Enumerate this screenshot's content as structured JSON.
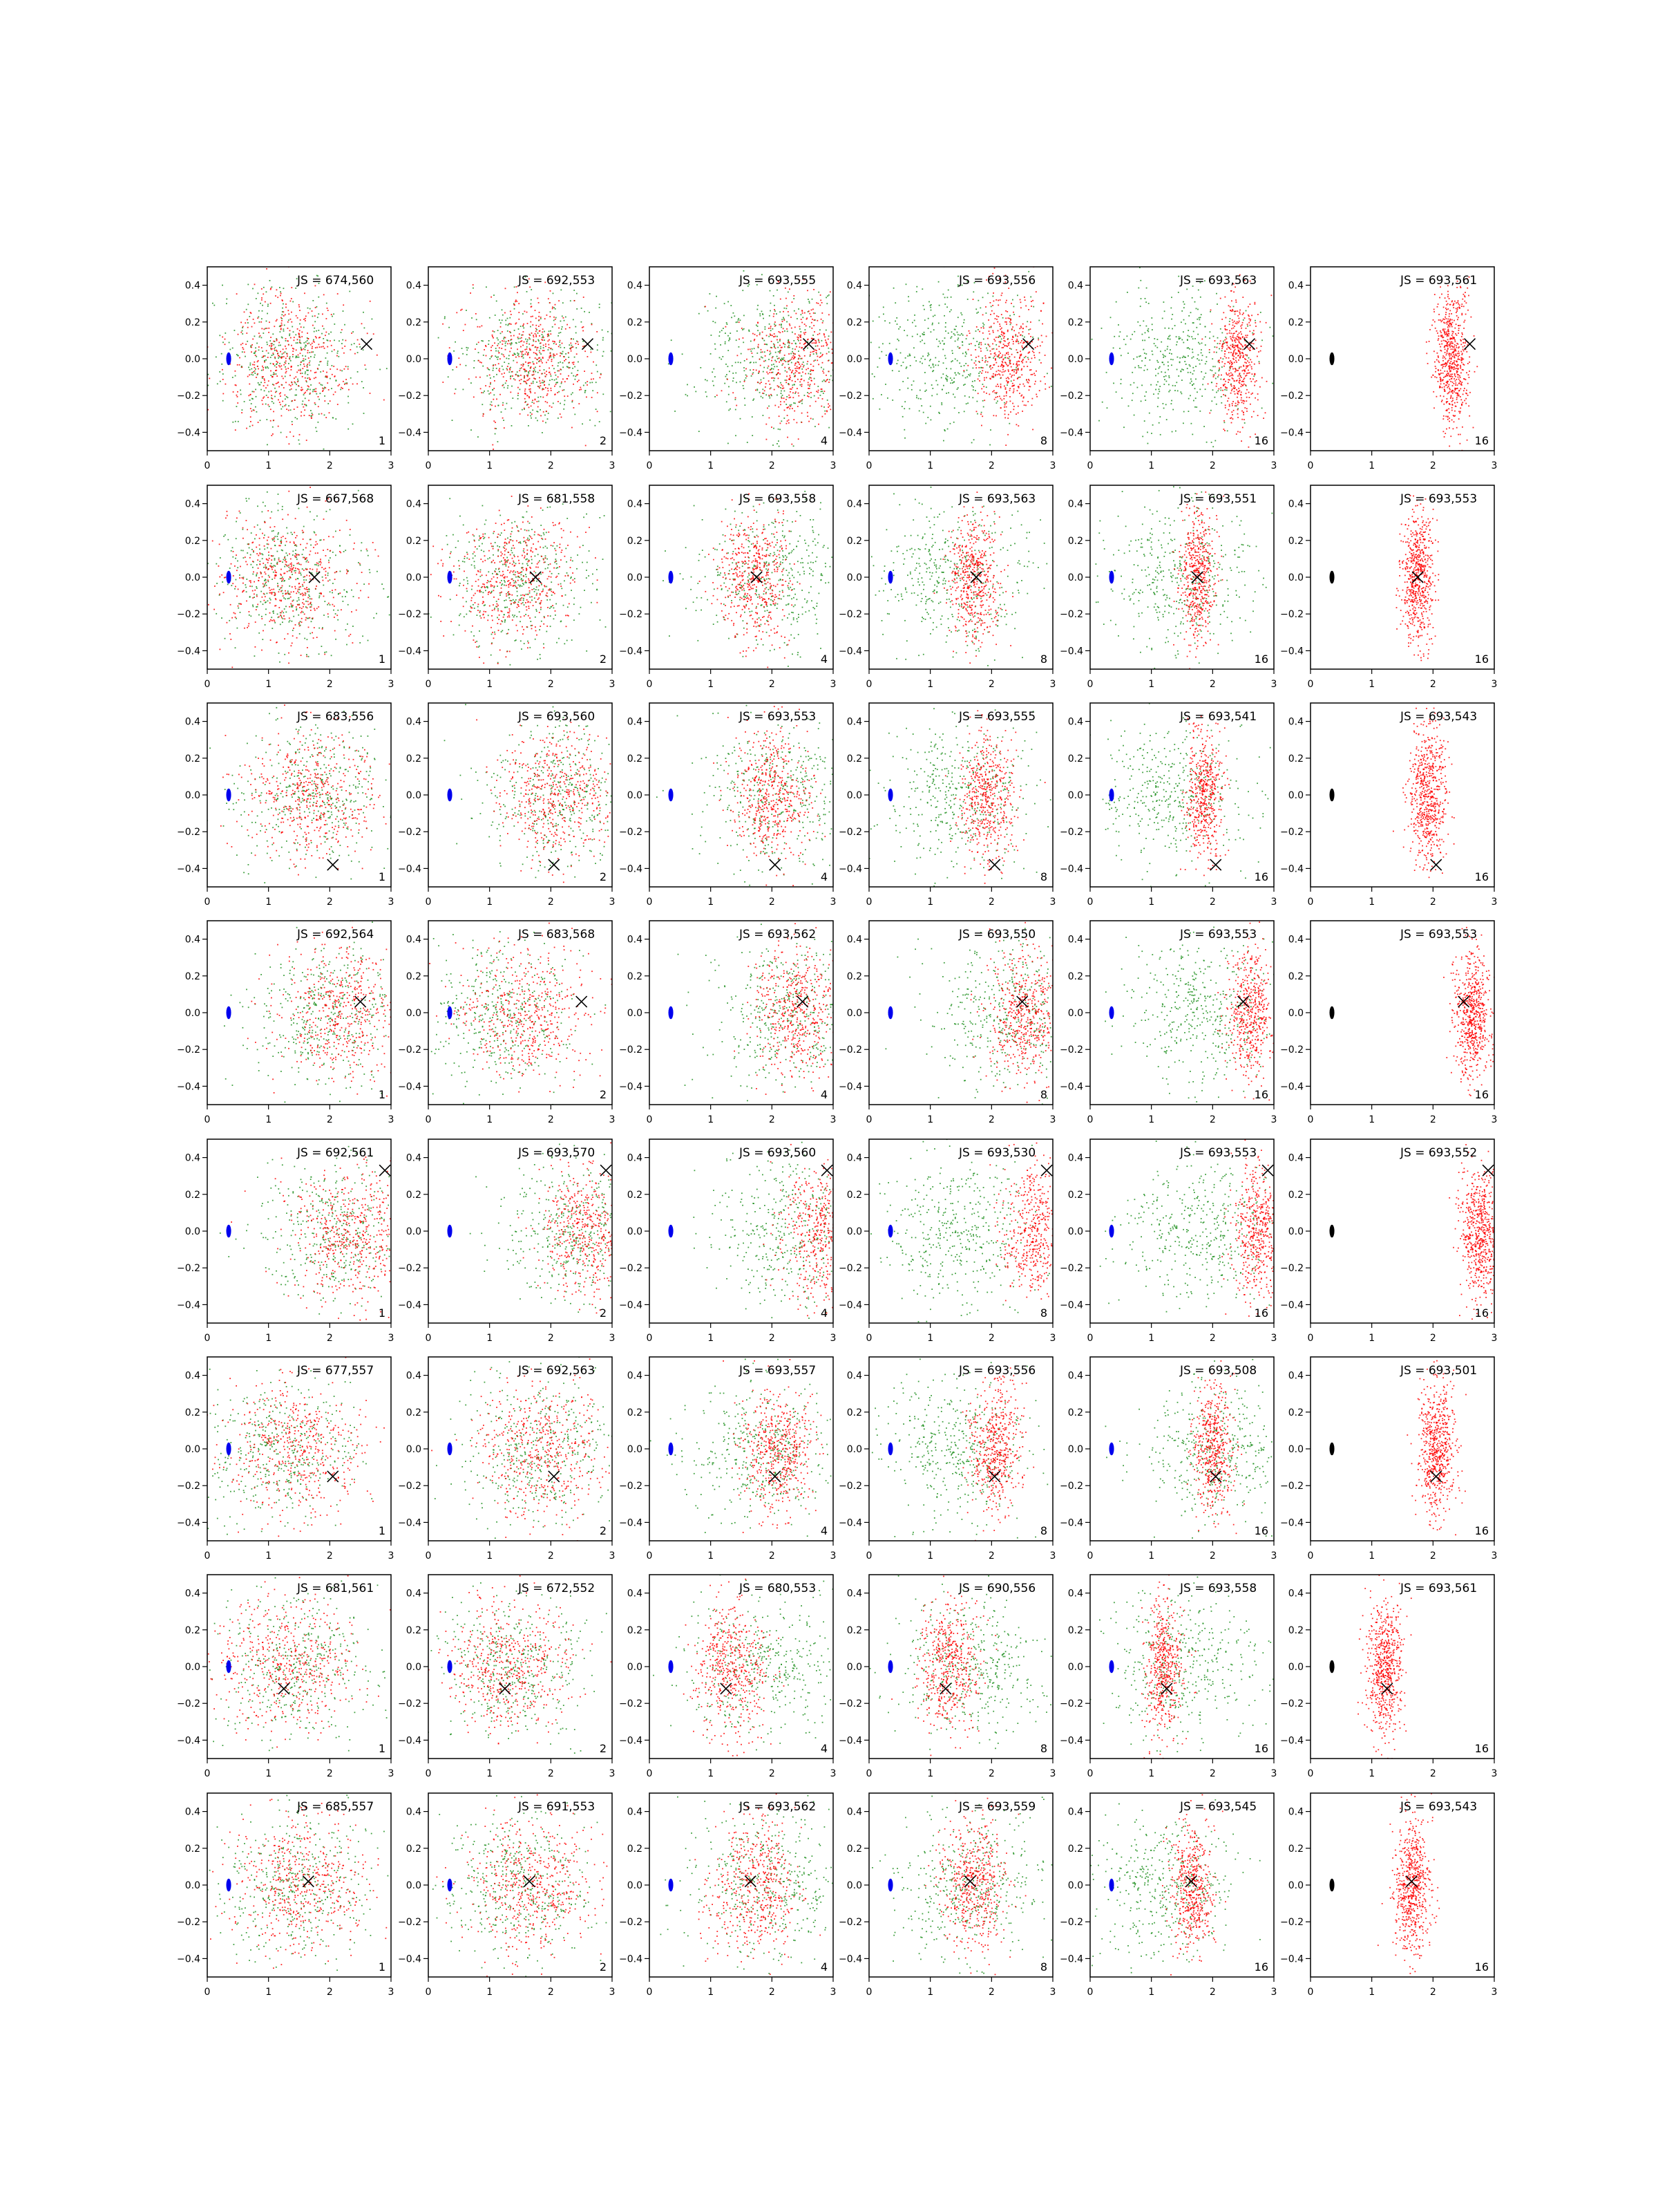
{
  "chart_data": {
    "type": "scatter",
    "layout": "grid",
    "rows": 8,
    "cols": 6,
    "xlim": [
      0,
      3
    ],
    "ylim": [
      -0.5,
      0.5
    ],
    "x_ticks": [
      "0",
      "1",
      "2",
      "3"
    ],
    "y_ticks": [
      "−0.4",
      "−0.2",
      "0.0",
      "0.2",
      "0.4"
    ],
    "colors": {
      "green": "#1f8f1f",
      "red": "#ff0000",
      "source": "#0000ee",
      "source_last": "#000000",
      "target": "#000000"
    },
    "source_ellipse": {
      "x": 0.35,
      "y": 0.0,
      "rx": 0.04,
      "ry": 0.035
    },
    "panel_labels": [
      "1",
      "2",
      "4",
      "8",
      "16",
      "16"
    ],
    "targets": [
      {
        "x": 2.6,
        "y": 0.08
      },
      {
        "x": 1.75,
        "y": 0.0
      },
      {
        "x": 2.05,
        "y": -0.38
      },
      {
        "x": 2.5,
        "y": 0.06
      },
      {
        "x": 2.9,
        "y": 0.33
      },
      {
        "x": 2.05,
        "y": -0.15
      },
      {
        "x": 1.25,
        "y": -0.12
      },
      {
        "x": 1.65,
        "y": 0.02
      }
    ],
    "js_labels": [
      [
        "JS = 674,560",
        "JS = 692,553",
        "JS = 693,555",
        "JS = 693,556",
        "JS = 693,563",
        "JS = 693,561"
      ],
      [
        "JS = 667,568",
        "JS = 681,558",
        "JS = 693,558",
        "JS = 693,563",
        "JS = 693,551",
        "JS = 693,553"
      ],
      [
        "JS = 683,556",
        "JS = 693,560",
        "JS = 693,553",
        "JS = 693,555",
        "JS = 693,541",
        "JS = 693,543"
      ],
      [
        "JS = 692,564",
        "JS = 683,568",
        "JS = 693,562",
        "JS = 693,550",
        "JS = 693,553",
        "JS = 693,553"
      ],
      [
        "JS = 692,561",
        "JS = 693,570",
        "JS = 693,560",
        "JS = 693,530",
        "JS = 693,553",
        "JS = 693,552"
      ],
      [
        "JS = 677,557",
        "JS = 692,563",
        "JS = 693,557",
        "JS = 693,556",
        "JS = 693,508",
        "JS = 693,501"
      ],
      [
        "JS = 681,561",
        "JS = 672,552",
        "JS = 680,553",
        "JS = 690,556",
        "JS = 693,558",
        "JS = 693,561"
      ],
      [
        "JS = 685,557",
        "JS = 691,553",
        "JS = 693,562",
        "JS = 693,559",
        "JS = 693,545",
        "JS = 693,543"
      ]
    ],
    "green_cloud_center_x": [
      [
        1.3,
        1.7,
        2.0,
        1.3,
        1.5,
        null
      ],
      [
        1.3,
        1.5,
        2.0,
        1.3,
        1.5,
        null
      ],
      [
        1.7,
        2.1,
        2.1,
        1.5,
        1.3,
        null
      ],
      [
        1.9,
        1.2,
        2.2,
        2.2,
        1.8,
        null
      ],
      [
        2.1,
        2.4,
        2.3,
        1.4,
        1.8,
        null
      ],
      [
        1.2,
        1.8,
        1.8,
        1.4,
        2.1,
        null
      ],
      [
        1.4,
        1.3,
        1.9,
        1.7,
        1.5,
        null
      ],
      [
        1.4,
        1.5,
        1.9,
        1.6,
        1.2,
        null
      ]
    ],
    "red_cloud_center_x": [
      [
        1.3,
        1.7,
        2.4,
        2.25,
        2.4,
        2.3
      ],
      [
        1.3,
        1.4,
        1.7,
        1.7,
        1.75,
        1.75
      ],
      [
        1.7,
        2.1,
        2.0,
        1.9,
        1.85,
        1.9
      ],
      [
        2.2,
        1.6,
        2.4,
        2.5,
        2.6,
        2.65
      ],
      [
        2.3,
        2.6,
        2.8,
        2.7,
        2.75,
        2.75
      ],
      [
        1.4,
        1.8,
        2.1,
        2.05,
        2.0,
        2.05
      ],
      [
        1.3,
        1.3,
        1.3,
        1.3,
        1.2,
        1.2
      ],
      [
        1.5,
        1.7,
        1.7,
        1.7,
        1.65,
        1.65
      ]
    ],
    "red_cloud_spread_x": [
      [
        0.55,
        0.5,
        0.45,
        0.3,
        0.18,
        0.14
      ],
      [
        0.55,
        0.5,
        0.3,
        0.2,
        0.15,
        0.13
      ],
      [
        0.55,
        0.45,
        0.3,
        0.22,
        0.16,
        0.15
      ],
      [
        0.5,
        0.55,
        0.35,
        0.28,
        0.18,
        0.15
      ],
      [
        0.5,
        0.4,
        0.35,
        0.28,
        0.2,
        0.16
      ],
      [
        0.55,
        0.5,
        0.3,
        0.22,
        0.16,
        0.14
      ],
      [
        0.55,
        0.5,
        0.3,
        0.25,
        0.15,
        0.15
      ],
      [
        0.55,
        0.5,
        0.35,
        0.25,
        0.18,
        0.15
      ]
    ]
  }
}
